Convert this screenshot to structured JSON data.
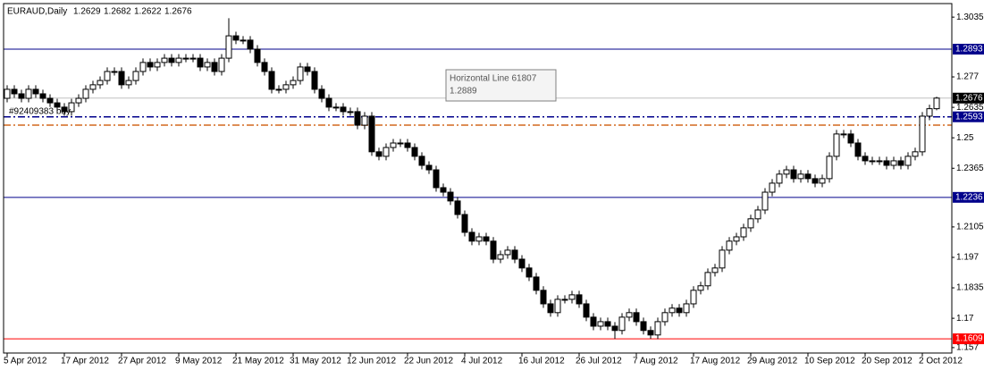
{
  "chart_data": {
    "type": "candlestick",
    "title": "EURAUD,Daily",
    "ylim": [
      1.1546,
      1.3095
    ],
    "yticks": [
      1.3035,
      1.277,
      1.2635,
      1.25,
      1.2365,
      1.2105,
      1.197,
      1.1835,
      1.17,
      1.157
    ],
    "up_color": "#ffffff",
    "down_color": "#000000",
    "categories": [
      "5 Apr 2012",
      null,
      null,
      null,
      null,
      null,
      null,
      null,
      "17 Apr 2012",
      null,
      null,
      null,
      null,
      null,
      null,
      null,
      "27 Apr 2012",
      null,
      null,
      null,
      null,
      null,
      null,
      null,
      "9 May 2012",
      null,
      null,
      null,
      null,
      null,
      null,
      null,
      "21 May 2012",
      null,
      null,
      null,
      null,
      null,
      null,
      null,
      "31 May 2012",
      null,
      null,
      null,
      null,
      null,
      null,
      null,
      "12 Jun 2012",
      null,
      null,
      null,
      null,
      null,
      null,
      null,
      "22 Jun 2012",
      null,
      null,
      null,
      null,
      null,
      null,
      null,
      "4 Jul 2012",
      null,
      null,
      null,
      null,
      null,
      null,
      null,
      "16 Jul 2012",
      null,
      null,
      null,
      null,
      null,
      null,
      null,
      "26 Jul 2012",
      null,
      null,
      null,
      null,
      null,
      null,
      null,
      "7 Aug 2012",
      null,
      null,
      null,
      null,
      null,
      null,
      null,
      "17 Aug 2012",
      null,
      null,
      null,
      null,
      null,
      null,
      null,
      "29 Aug 2012",
      null,
      null,
      null,
      null,
      null,
      null,
      null,
      "10 Sep 2012",
      null,
      null,
      null,
      null,
      null,
      null,
      null,
      "20 Sep 2012",
      null,
      null,
      null,
      null,
      null,
      null,
      null,
      "2 Oct 2012",
      null,
      null
    ],
    "ohlc": [
      [
        1.2675,
        1.2733,
        1.2657,
        1.2715
      ],
      [
        1.2715,
        1.2733,
        1.2677,
        1.2695
      ],
      [
        1.2695,
        1.2713,
        1.2657,
        1.2675
      ],
      [
        1.2675,
        1.2733,
        1.2657,
        1.2715
      ],
      [
        1.2715,
        1.2733,
        1.2677,
        1.2695
      ],
      [
        1.2695,
        1.2713,
        1.2657,
        1.2675
      ],
      [
        1.2675,
        1.2693,
        1.2637,
        1.2655
      ],
      [
        1.2655,
        1.2673,
        1.2618,
        1.2636
      ],
      [
        1.2636,
        1.2654,
        1.2598,
        1.2616
      ],
      [
        1.2616,
        1.2673,
        1.2598,
        1.2655
      ],
      [
        1.2655,
        1.2693,
        1.2637,
        1.2675
      ],
      [
        1.2675,
        1.2733,
        1.2657,
        1.2715
      ],
      [
        1.2715,
        1.2753,
        1.2697,
        1.2735
      ],
      [
        1.2735,
        1.2772,
        1.2717,
        1.2754
      ],
      [
        1.2754,
        1.2812,
        1.2736,
        1.2794
      ],
      [
        1.2794,
        1.2812,
        1.2776,
        1.2794
      ],
      [
        1.2794,
        1.2812,
        1.2717,
        1.2735
      ],
      [
        1.2735,
        1.2772,
        1.2717,
        1.2754
      ],
      [
        1.2754,
        1.2812,
        1.2736,
        1.2794
      ],
      [
        1.2794,
        1.2852,
        1.2776,
        1.2834
      ],
      [
        1.2834,
        1.2852,
        1.2796,
        1.2814
      ],
      [
        1.2814,
        1.2852,
        1.2796,
        1.2834
      ],
      [
        1.2834,
        1.2871,
        1.2816,
        1.2853
      ],
      [
        1.2853,
        1.2871,
        1.2816,
        1.2834
      ],
      [
        1.2834,
        1.2871,
        1.2816,
        1.2853
      ],
      [
        1.2853,
        1.2871,
        1.2835,
        1.2853
      ],
      [
        1.2853,
        1.2871,
        1.2835,
        1.2853
      ],
      [
        1.2853,
        1.2871,
        1.2796,
        1.2814
      ],
      [
        1.2814,
        1.2852,
        1.2796,
        1.2834
      ],
      [
        1.2834,
        1.2852,
        1.2776,
        1.2794
      ],
      [
        1.2794,
        1.2871,
        1.2776,
        1.2853
      ],
      [
        1.2853,
        1.303,
        1.2835,
        1.2952
      ],
      [
        1.2952,
        1.297,
        1.2915,
        1.2933
      ],
      [
        1.2933,
        1.2951,
        1.2915,
        1.2933
      ],
      [
        1.2933,
        1.2951,
        1.2875,
        1.2893
      ],
      [
        1.2893,
        1.2911,
        1.2816,
        1.2834
      ],
      [
        1.2834,
        1.2852,
        1.2776,
        1.2794
      ],
      [
        1.2794,
        1.2812,
        1.2697,
        1.2715
      ],
      [
        1.2715,
        1.2733,
        1.2697,
        1.2715
      ],
      [
        1.2715,
        1.2753,
        1.2697,
        1.2735
      ],
      [
        1.2735,
        1.2772,
        1.2717,
        1.2754
      ],
      [
        1.2754,
        1.2832,
        1.2736,
        1.2814
      ],
      [
        1.2814,
        1.2832,
        1.2776,
        1.2794
      ],
      [
        1.2794,
        1.2812,
        1.2697,
        1.2715
      ],
      [
        1.2715,
        1.2733,
        1.2657,
        1.2675
      ],
      [
        1.2675,
        1.2693,
        1.2618,
        1.2636
      ],
      [
        1.2636,
        1.2654,
        1.2618,
        1.2636
      ],
      [
        1.2636,
        1.2654,
        1.2598,
        1.2616
      ],
      [
        1.2616,
        1.2634,
        1.2598,
        1.2616
      ],
      [
        1.2616,
        1.2634,
        1.2538,
        1.2556
      ],
      [
        1.2556,
        1.2614,
        1.2538,
        1.2596
      ],
      [
        1.2596,
        1.2614,
        1.242,
        1.2438
      ],
      [
        1.2438,
        1.2456,
        1.24,
        1.2418
      ],
      [
        1.2418,
        1.2475,
        1.24,
        1.2457
      ],
      [
        1.2457,
        1.2495,
        1.2439,
        1.2477
      ],
      [
        1.2477,
        1.2495,
        1.2459,
        1.2477
      ],
      [
        1.2477,
        1.2495,
        1.2439,
        1.2457
      ],
      [
        1.2457,
        1.2475,
        1.24,
        1.2418
      ],
      [
        1.2418,
        1.2436,
        1.236,
        1.2378
      ],
      [
        1.2378,
        1.2396,
        1.234,
        1.2358
      ],
      [
        1.2358,
        1.2376,
        1.2261,
        1.2279
      ],
      [
        1.2279,
        1.2297,
        1.2241,
        1.2259
      ],
      [
        1.2259,
        1.2277,
        1.2202,
        1.222
      ],
      [
        1.222,
        1.2238,
        1.2142,
        1.216
      ],
      [
        1.216,
        1.2178,
        1.2063,
        1.2081
      ],
      [
        1.2081,
        1.2099,
        1.2024,
        1.2042
      ],
      [
        1.2042,
        1.2079,
        1.2024,
        1.2061
      ],
      [
        1.2061,
        1.2079,
        1.2024,
        1.2042
      ],
      [
        1.2042,
        1.206,
        1.1944,
        1.1962
      ],
      [
        1.1962,
        1.2,
        1.1944,
        1.1982
      ],
      [
        1.1982,
        1.202,
        1.1964,
        1.2002
      ],
      [
        1.2002,
        1.202,
        1.1944,
        1.1962
      ],
      [
        1.1962,
        1.198,
        1.1905,
        1.1923
      ],
      [
        1.1923,
        1.1941,
        1.1865,
        1.1883
      ],
      [
        1.1883,
        1.1901,
        1.1806,
        1.1824
      ],
      [
        1.1824,
        1.1842,
        1.1746,
        1.1764
      ],
      [
        1.1764,
        1.1782,
        1.1707,
        1.1725
      ],
      [
        1.1725,
        1.1802,
        1.1707,
        1.1784
      ],
      [
        1.1784,
        1.1802,
        1.1766,
        1.1784
      ],
      [
        1.1784,
        1.1822,
        1.1766,
        1.1804
      ],
      [
        1.1804,
        1.1822,
        1.1746,
        1.1764
      ],
      [
        1.1764,
        1.1782,
        1.1687,
        1.1705
      ],
      [
        1.1705,
        1.1723,
        1.1647,
        1.1665
      ],
      [
        1.1665,
        1.1703,
        1.1647,
        1.1685
      ],
      [
        1.1685,
        1.1703,
        1.1647,
        1.1665
      ],
      [
        1.1665,
        1.1683,
        1.1609,
        1.1646
      ],
      [
        1.1646,
        1.1723,
        1.1628,
        1.1705
      ],
      [
        1.1705,
        1.1743,
        1.1687,
        1.1725
      ],
      [
        1.1725,
        1.1743,
        1.1667,
        1.1685
      ],
      [
        1.1685,
        1.1703,
        1.1628,
        1.1646
      ],
      [
        1.1646,
        1.1664,
        1.1609,
        1.1626
      ],
      [
        1.1626,
        1.1703,
        1.1608,
        1.1685
      ],
      [
        1.1685,
        1.1743,
        1.1667,
        1.1725
      ],
      [
        1.1725,
        1.1763,
        1.1707,
        1.1745
      ],
      [
        1.1745,
        1.1763,
        1.1707,
        1.1725
      ],
      [
        1.1725,
        1.1782,
        1.1707,
        1.1764
      ],
      [
        1.1764,
        1.1842,
        1.1746,
        1.1824
      ],
      [
        1.1824,
        1.1862,
        1.1806,
        1.1844
      ],
      [
        1.1844,
        1.1921,
        1.1826,
        1.1903
      ],
      [
        1.1903,
        1.1941,
        1.1885,
        1.1923
      ],
      [
        1.1923,
        1.202,
        1.1905,
        1.2002
      ],
      [
        1.2002,
        1.206,
        1.1984,
        1.2042
      ],
      [
        1.2042,
        1.2079,
        1.2024,
        1.2061
      ],
      [
        1.2061,
        1.2119,
        1.2043,
        1.2101
      ],
      [
        1.2101,
        1.2159,
        1.2083,
        1.2141
      ],
      [
        1.2141,
        1.2198,
        1.2123,
        1.218
      ],
      [
        1.218,
        1.2277,
        1.2162,
        1.2259
      ],
      [
        1.2259,
        1.2317,
        1.2241,
        1.2299
      ],
      [
        1.2299,
        1.2357,
        1.2281,
        1.2339
      ],
      [
        1.2339,
        1.2376,
        1.2321,
        1.2358
      ],
      [
        1.2358,
        1.2376,
        1.2301,
        1.2319
      ],
      [
        1.2319,
        1.2357,
        1.2301,
        1.2339
      ],
      [
        1.2339,
        1.2357,
        1.2301,
        1.2319
      ],
      [
        1.2319,
        1.2337,
        1.2281,
        1.2299
      ],
      [
        1.2299,
        1.2337,
        1.2281,
        1.2319
      ],
      [
        1.2319,
        1.2436,
        1.2301,
        1.2418
      ],
      [
        1.2418,
        1.2535,
        1.24,
        1.2517
      ],
      [
        1.2517,
        1.2535,
        1.2499,
        1.2517
      ],
      [
        1.2517,
        1.2535,
        1.2459,
        1.2477
      ],
      [
        1.2477,
        1.2495,
        1.24,
        1.2418
      ],
      [
        1.2418,
        1.2436,
        1.238,
        1.2398
      ],
      [
        1.2398,
        1.2416,
        1.238,
        1.2398
      ],
      [
        1.2398,
        1.2416,
        1.238,
        1.2398
      ],
      [
        1.2398,
        1.2416,
        1.236,
        1.2378
      ],
      [
        1.2378,
        1.2416,
        1.236,
        1.2398
      ],
      [
        1.2398,
        1.2416,
        1.236,
        1.2378
      ],
      [
        1.2378,
        1.2436,
        1.236,
        1.2418
      ],
      [
        1.2418,
        1.2456,
        1.24,
        1.2438
      ],
      [
        1.2438,
        1.2614,
        1.242,
        1.2596
      ],
      [
        1.2596,
        1.2647,
        1.2578,
        1.2629
      ],
      [
        1.2629,
        1.2682,
        1.2622,
        1.2676
      ]
    ],
    "bid_line_color": "#c0c0c0",
    "levels": [
      {
        "value": 1.2893,
        "color": "#00008b",
        "style": "solid"
      },
      {
        "value": 1.2593,
        "color": "#00008b",
        "style": "dashdot",
        "label": "#92409383 buy"
      },
      {
        "value": 1.2556,
        "color": "#d2691e",
        "style": "dashdot"
      },
      {
        "value": 1.2236,
        "color": "#00008b",
        "style": "solid"
      },
      {
        "value": 1.1609,
        "color": "#ff0000",
        "style": "solid"
      }
    ],
    "tooltip": {
      "title": "Horizontal Line 61807",
      "value": 1.2889
    }
  }
}
